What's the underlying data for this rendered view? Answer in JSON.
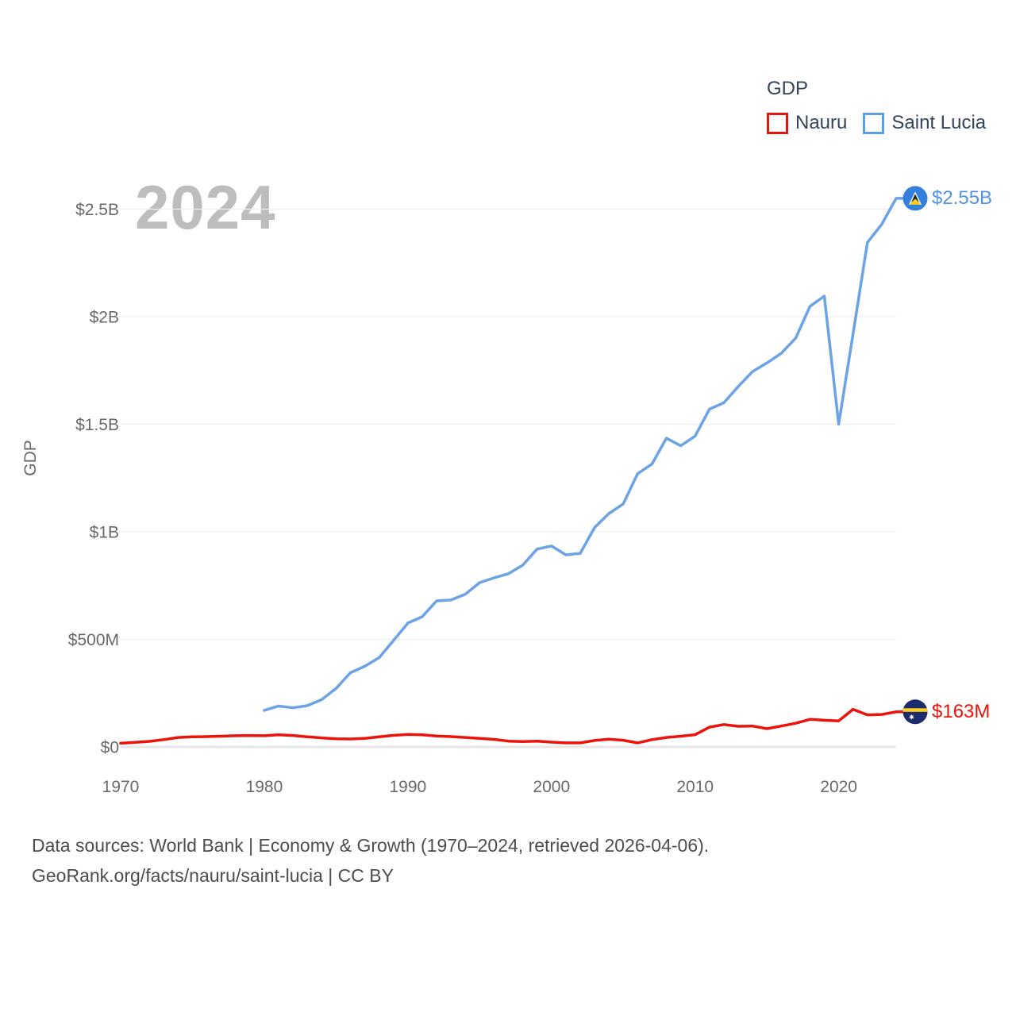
{
  "watermark": "2024",
  "legend": {
    "title": "GDP",
    "items": [
      {
        "label": "Nauru",
        "color": "#ec130b"
      },
      {
        "label": "Saint Lucia",
        "color": "#5b9fe3"
      }
    ]
  },
  "footer": {
    "line1": "Data sources: World Bank | Economy & Growth (1970–2024, retrieved 2026-04-06).",
    "line2": "GeoRank.org/facts/nauru/saint-lucia | CC BY"
  },
  "colors": {
    "axis_text": "#696969",
    "gridline": "#efefef",
    "zero_line": "#e7e7e7",
    "marker_blue_flag_field": "#3381dd",
    "nauru_flag_navy": "#1d2c6e",
    "flag_yellow": "#ffce1e",
    "flag_white": "#ffffff",
    "flag_black": "#1a1a1a"
  },
  "chart_data": {
    "type": "line",
    "title": "GDP",
    "ylabel": "GDP",
    "xlim": [
      1970,
      2024
    ],
    "ylim_usd_millions": [
      0,
      2500
    ],
    "x_ticks": [
      {
        "label": "1970",
        "value": 1970
      },
      {
        "label": "1980",
        "value": 1980
      },
      {
        "label": "1990",
        "value": 1990
      },
      {
        "label": "2000",
        "value": 2000
      },
      {
        "label": "2010",
        "value": 2010
      },
      {
        "label": "2020",
        "value": 2020
      }
    ],
    "y_ticks": [
      {
        "label": "$0",
        "value": 0
      },
      {
        "label": "$500M",
        "value": 500
      },
      {
        "label": "$1B",
        "value": 1000
      },
      {
        "label": "$1.5B",
        "value": 1500
      },
      {
        "label": "$2B",
        "value": 2000
      },
      {
        "label": "$2.5B",
        "value": 2500
      }
    ],
    "legend_position": "top-right",
    "grid": "horizontal-only",
    "series": [
      {
        "name": "Nauru",
        "color": "#ec130b",
        "label_color": "#ec130b",
        "flag": "nauru",
        "start_year": 1970,
        "end_label": "$163M",
        "end_value_usd_millions": 163,
        "values_usd_millions": [
          17,
          21,
          26,
          34,
          44,
          47,
          48,
          50,
          52,
          53,
          52,
          56,
          53,
          47,
          42,
          38,
          37,
          40,
          47,
          54,
          58,
          56,
          51,
          48,
          44,
          40,
          35,
          27,
          25,
          27,
          22,
          19,
          19,
          30,
          36,
          31,
          19,
          34,
          44,
          50,
          57,
          92,
          104,
          96,
          97,
          85,
          97,
          110,
          128,
          124,
          121,
          175,
          149,
          151,
          163
        ]
      },
      {
        "name": "Saint Lucia",
        "color": "#6ba3e4",
        "label_color": "#4f93e6",
        "flag": "saint-lucia",
        "start_year": 1980,
        "end_label": "$2.55B",
        "end_value_usd_millions": 2550,
        "values_usd_millions": [
          170,
          190,
          182,
          192,
          220,
          272,
          345,
          375,
          415,
          495,
          576,
          605,
          679,
          683,
          710,
          764,
          786,
          805,
          845,
          920,
          934,
          893,
          900,
          1020,
          1085,
          1130,
          1270,
          1315,
          1435,
          1400,
          1445,
          1570,
          1600,
          1675,
          1745,
          1785,
          1830,
          1900,
          2048,
          2096,
          1500,
          1920,
          2345,
          2430,
          2550
        ]
      }
    ]
  }
}
